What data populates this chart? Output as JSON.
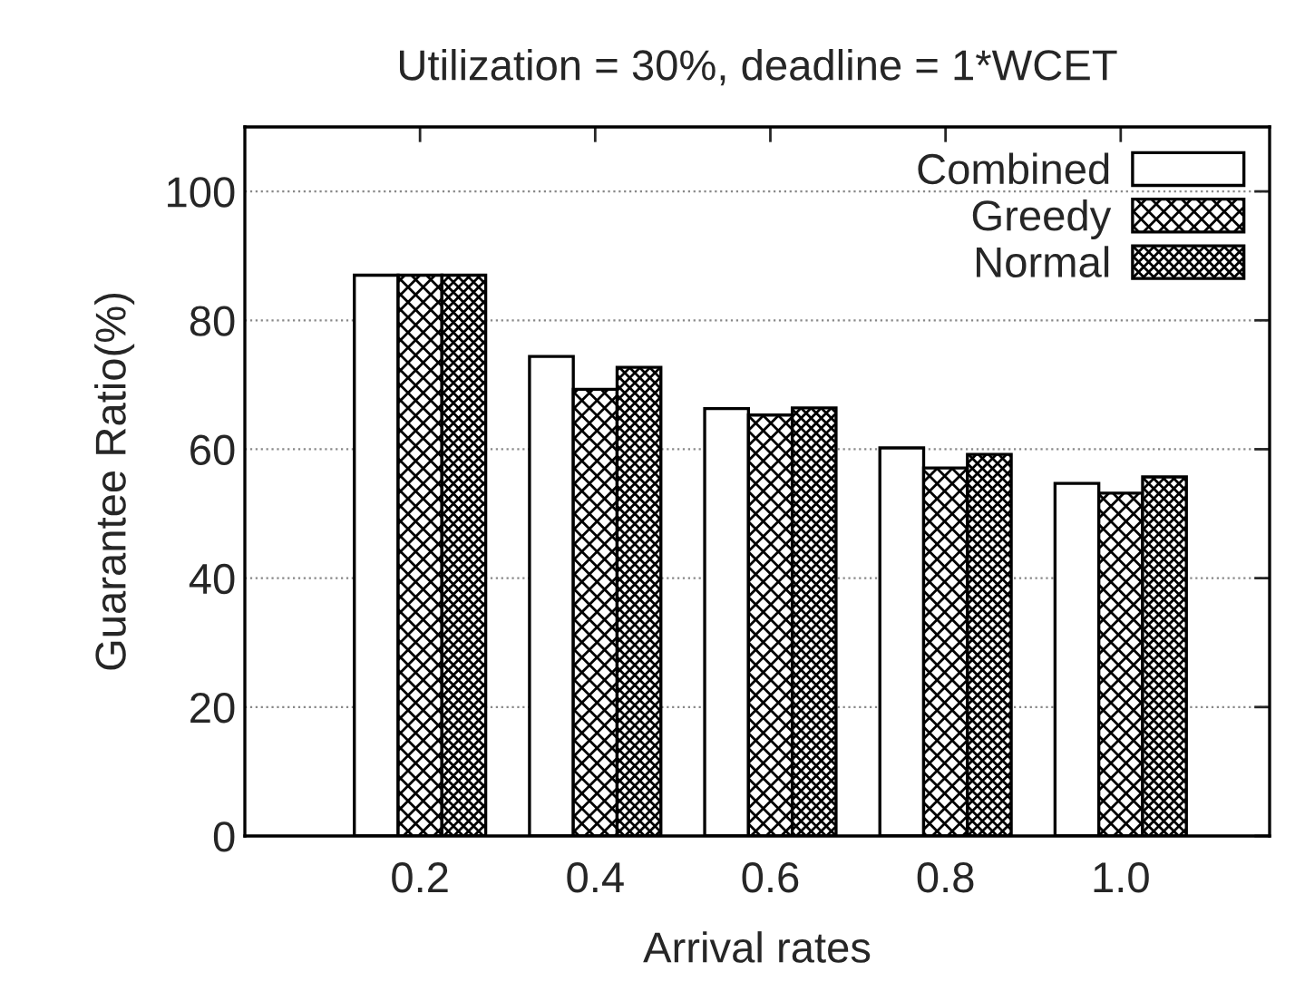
{
  "chart_data": {
    "type": "bar",
    "title": "Utilization = 30%, deadline = 1*WCET",
    "xlabel": "Arrival rates",
    "ylabel": "Guarantee Ratio(%)",
    "categories": [
      "0.2",
      "0.4",
      "0.6",
      "0.8",
      "1.0"
    ],
    "series": [
      {
        "name": "Combined",
        "color": "#ffffff",
        "values": [
          87,
          74.4,
          66.3,
          60.2,
          54.7
        ]
      },
      {
        "name": "Greedy",
        "color": "#000000",
        "values": [
          87,
          69.3,
          65.3,
          57.1,
          53.2
        ]
      },
      {
        "name": "Normal",
        "color": "#000000",
        "values": [
          87,
          72.7,
          66.4,
          59.2,
          55.7
        ]
      }
    ],
    "ylim": [
      0,
      110
    ],
    "yticks": [
      0,
      20,
      40,
      60,
      80,
      100
    ],
    "grid": "y",
    "legend": "top right"
  }
}
